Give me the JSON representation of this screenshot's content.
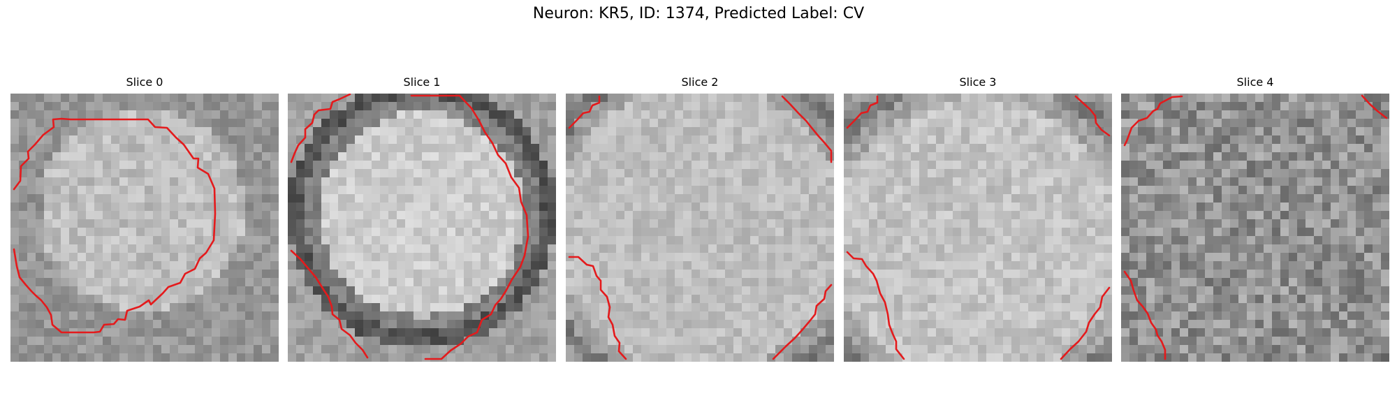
{
  "figure": {
    "title": "Neuron: KR5, ID: 1374, Predicted Label: CV"
  },
  "panels": [
    {
      "title": "Slice 0"
    },
    {
      "title": "Slice 1"
    },
    {
      "title": "Slice 2"
    },
    {
      "title": "Slice 3"
    },
    {
      "title": "Slice 4"
    }
  ],
  "colors": {
    "contour": "#e41a1c",
    "colormap": "grayscale"
  }
}
